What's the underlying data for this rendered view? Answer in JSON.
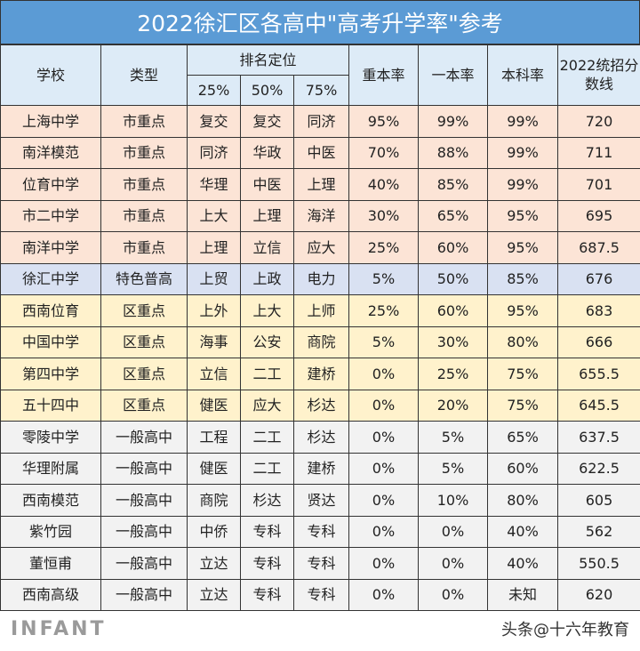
{
  "title": "2022徐汇区各高中\"高考升学率\"参考",
  "headers": {
    "school": "学校",
    "type": "类型",
    "rank": "排名定位",
    "p25": "25%",
    "p50": "50%",
    "p75": "75%",
    "key": "重本率",
    "tier1": "一本率",
    "bachelor": "本科率",
    "score": "2022统招分数线"
  },
  "colors": {
    "title": "#5b9bd5",
    "header": "#ddebf7",
    "city_key": "#fce4d6",
    "special": "#d9e1f2",
    "district_key": "#fff2cc",
    "general": "#f2f2f2"
  },
  "rows": [
    [
      "上海中学",
      "市重点",
      "复交",
      "复交",
      "同济",
      "95%",
      "99%",
      "99%",
      "720"
    ],
    [
      "南洋模范",
      "市重点",
      "同济",
      "华政",
      "中医",
      "70%",
      "88%",
      "99%",
      "711"
    ],
    [
      "位育中学",
      "市重点",
      "华理",
      "中医",
      "上理",
      "40%",
      "85%",
      "99%",
      "701"
    ],
    [
      "市二中学",
      "市重点",
      "上大",
      "上理",
      "海洋",
      "30%",
      "65%",
      "95%",
      "695"
    ],
    [
      "南洋中学",
      "市重点",
      "上理",
      "立信",
      "应大",
      "25%",
      "60%",
      "95%",
      "687.5"
    ],
    [
      "徐汇中学",
      "特色普高",
      "上贸",
      "上政",
      "电力",
      "5%",
      "50%",
      "85%",
      "676"
    ],
    [
      "西南位育",
      "区重点",
      "上外",
      "上大",
      "上师",
      "25%",
      "60%",
      "95%",
      "683"
    ],
    [
      "中国中学",
      "区重点",
      "海事",
      "公安",
      "商院",
      "5%",
      "30%",
      "80%",
      "666"
    ],
    [
      "第四中学",
      "区重点",
      "立信",
      "二工",
      "建桥",
      "0%",
      "25%",
      "75%",
      "655.5"
    ],
    [
      "五十四中",
      "区重点",
      "健医",
      "应大",
      "杉达",
      "0%",
      "20%",
      "75%",
      "645.5"
    ],
    [
      "零陵中学",
      "一般高中",
      "工程",
      "二工",
      "杉达",
      "0%",
      "5%",
      "65%",
      "637.5"
    ],
    [
      "华理附属",
      "一般高中",
      "健医",
      "二工",
      "建桥",
      "0%",
      "5%",
      "60%",
      "622.5"
    ],
    [
      "西南模范",
      "一般高中",
      "商院",
      "杉达",
      "贤达",
      "0%",
      "10%",
      "80%",
      "605"
    ],
    [
      "紫竹园",
      "一般高中",
      "中侨",
      "专科",
      "专科",
      "0%",
      "0%",
      "40%",
      "562"
    ],
    [
      "董恒甫",
      "一般高中",
      "立达",
      "专科",
      "专科",
      "0%",
      "0%",
      "40%",
      "550.5"
    ],
    [
      "西南高级",
      "一般高中",
      "立达",
      "专科",
      "专科",
      "0%",
      "0%",
      "未知",
      "620"
    ]
  ],
  "watermark": "头条@十六年教育",
  "logo_text": "INFANT"
}
